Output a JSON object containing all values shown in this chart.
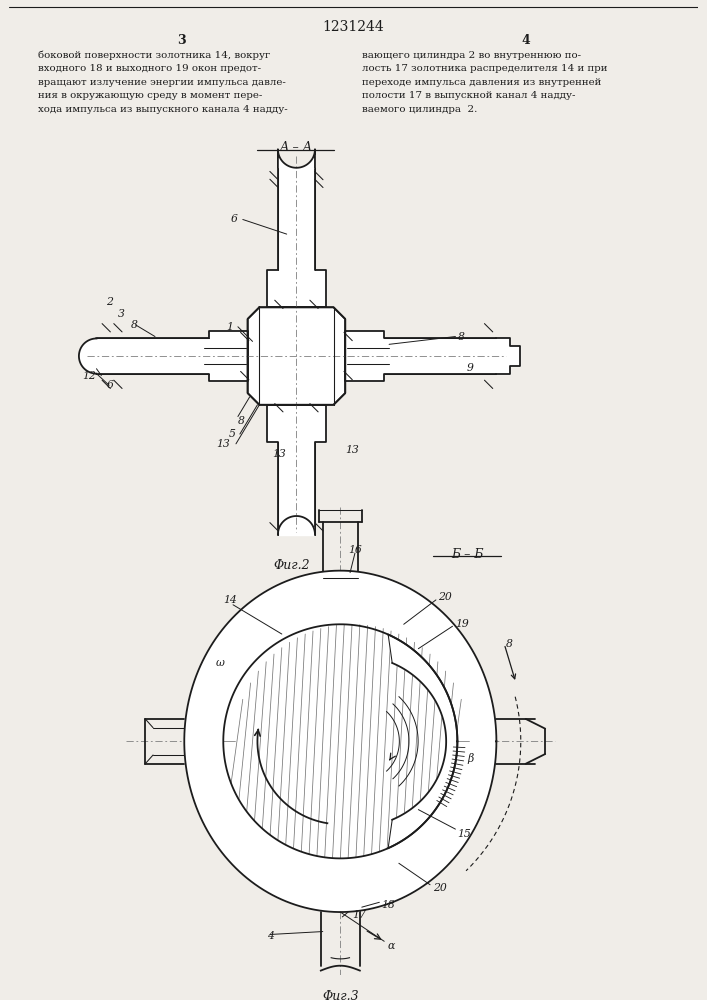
{
  "title": "1231244",
  "page_left": "3",
  "page_right": "4",
  "text_col1": [
    "боковой поверхности золотника 14, вокруг",
    "входного 18 и выходного 19 окон предот-",
    "вращают излучение энергии импульса давле-",
    "ния в окружающую среду в момент пере-",
    "хода импульса из выпускного канала 4 надду-"
  ],
  "text_col2": [
    "вающего цилиндра 2 во внутреннюю по-",
    "лость 17 золотника распределителя 14 и при",
    "переходе импульса давления из внутренней",
    "полости 17 в выпускной канал 4 надду-",
    "ваемого цилиндра  2."
  ],
  "fig2_label": "Φиг.2",
  "fig3_label": "Φиг.3",
  "section_aa": "А – А",
  "section_bb": "Б – Б",
  "bg_color": "#f0ede8",
  "lc": "#1c1c1c"
}
